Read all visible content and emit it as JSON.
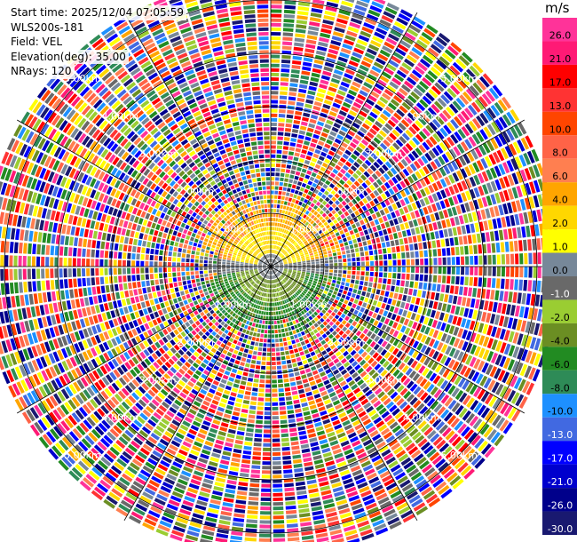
{
  "header": {
    "start_time": "Start time: 2025/12/04 07:05:59",
    "instrument": "WLS200s-181",
    "field": "Field: VEL",
    "elevation": "Elevation(deg): 35.00",
    "nrays": "NRays: 120"
  },
  "colorbar": {
    "unit": "m/s",
    "bins": [
      {
        "label": "26.0",
        "color": "#ff3399"
      },
      {
        "label": "21.0",
        "color": "#ff1a75"
      },
      {
        "label": "17.0",
        "color": "#ff0000"
      },
      {
        "label": "13.0",
        "color": "#ff3333"
      },
      {
        "label": "10.0",
        "color": "#ff4500"
      },
      {
        "label": "8.0",
        "color": "#ff6347"
      },
      {
        "label": "6.0",
        "color": "#ff7f50"
      },
      {
        "label": "4.0",
        "color": "#ffa500"
      },
      {
        "label": "2.0",
        "color": "#ffd700"
      },
      {
        "label": "1.0",
        "color": "#ffff00"
      },
      {
        "label": "0.0",
        "color": "#778899"
      },
      {
        "label": "-1.0",
        "color": "#696969"
      },
      {
        "label": "-2.0",
        "color": "#9acd32"
      },
      {
        "label": "-4.0",
        "color": "#6b8e23"
      },
      {
        "label": "-6.0",
        "color": "#228b22"
      },
      {
        "label": "-8.0",
        "color": "#2e8b57"
      },
      {
        "label": "-10.0",
        "color": "#1e90ff"
      },
      {
        "label": "-13.0",
        "color": "#4169e1"
      },
      {
        "label": "-17.0",
        "color": "#0000ff"
      },
      {
        "label": "-21.0",
        "color": "#0000cd"
      },
      {
        "label": "-26.0",
        "color": "#00008b"
      },
      {
        "label": "-30.0",
        "color": "#191970"
      }
    ]
  },
  "range_rings": [
    "1.00km",
    "2.00km",
    "3.00km",
    "4.00km",
    "5.00km"
  ],
  "chart_data": {
    "type": "heatmap",
    "title": "",
    "field": "VEL",
    "units": "m/s",
    "projection": "polar",
    "elevation_deg": 35.0,
    "nrays": 120,
    "max_range_km": 5.5,
    "range_rings_km": [
      1,
      2,
      3,
      4,
      5
    ],
    "value_min": -30.0,
    "value_max": 30.0,
    "gates": [
      {
        "range_km": [
          0.0,
          0.6
        ],
        "sector": "north",
        "values_ms": [
          4.0,
          6.0
        ]
      },
      {
        "range_km": [
          0.6,
          1.3
        ],
        "sector": "north",
        "values_ms": [
          1.0,
          6.0
        ]
      },
      {
        "range_km": [
          0.0,
          0.5
        ],
        "sector": "center",
        "values_ms": [
          -1.0,
          0.0
        ]
      },
      {
        "range_km": [
          0.0,
          0.7
        ],
        "sector": "south-west",
        "values_ms": [
          -2.0,
          -4.0
        ]
      },
      {
        "range_km": [
          0.0,
          0.9
        ],
        "sector": "south",
        "values_ms": [
          -4.0,
          -6.0
        ]
      },
      {
        "range_km": [
          1.3,
          5.5
        ],
        "sector": "all",
        "values_ms": "noise"
      }
    ]
  }
}
